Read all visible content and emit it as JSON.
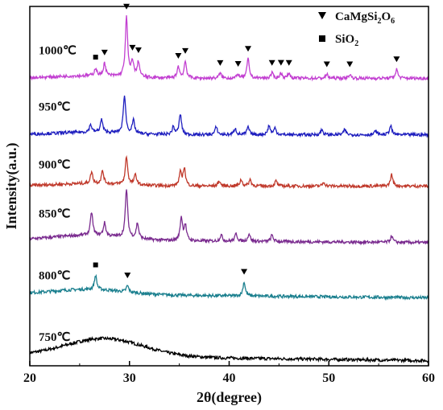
{
  "chart_data": {
    "type": "line",
    "title": "",
    "xlabel": "2θ(degree)",
    "ylabel": "Intensity(a.u.)",
    "xlim": [
      20,
      60
    ],
    "x_ticks": [
      20,
      30,
      40,
      50,
      60
    ],
    "y_ticks_shown": false,
    "legend": [
      {
        "marker": "▼",
        "label": "CaMgSi",
        "sub1": "2",
        "mid": "O",
        "sub2": "6",
        "symbol": "triangle-down"
      },
      {
        "marker": "■",
        "label": "SiO",
        "sub1": "2",
        "mid": "",
        "sub2": "",
        "symbol": "square"
      }
    ],
    "legend_position": "top-right",
    "series": [
      {
        "name": "750°C",
        "label": "750℃",
        "color": "#000000",
        "baseline": 0.0,
        "hump": {
          "center": 27.5,
          "width": 5.5,
          "height": 0.07
        },
        "drift": -0.02,
        "peaks": []
      },
      {
        "name": "800°C",
        "label": "800℃",
        "color": "#1a7f8e",
        "baseline": 0.24,
        "hump": {
          "center": 26,
          "width": 5,
          "height": 0.02
        },
        "drift": -0.015,
        "peaks": [
          {
            "x": 26.6,
            "h": 0.055
          },
          {
            "x": 29.8,
            "h": 0.025
          },
          {
            "x": 41.5,
            "h": 0.055
          }
        ]
      },
      {
        "name": "850°C",
        "label": "850℃",
        "color": "#7a2b8f",
        "baseline": 0.45,
        "hump": {
          "center": 26,
          "width": 5,
          "height": 0.02
        },
        "drift": -0.01,
        "peaks": [
          {
            "x": 26.2,
            "h": 0.09
          },
          {
            "x": 27.5,
            "h": 0.05
          },
          {
            "x": 29.7,
            "h": 0.19
          },
          {
            "x": 30.8,
            "h": 0.06
          },
          {
            "x": 35.2,
            "h": 0.09
          },
          {
            "x": 35.6,
            "h": 0.06
          },
          {
            "x": 39.2,
            "h": 0.025
          },
          {
            "x": 40.7,
            "h": 0.03
          },
          {
            "x": 42.0,
            "h": 0.03
          },
          {
            "x": 44.3,
            "h": 0.025
          },
          {
            "x": 56.3,
            "h": 0.025
          }
        ]
      },
      {
        "name": "900°C",
        "label": "900℃",
        "color": "#c0392b",
        "baseline": 0.66,
        "hump": {
          "center": 26,
          "width": 5,
          "height": 0.01
        },
        "drift": 0.0,
        "peaks": [
          {
            "x": 26.2,
            "h": 0.045
          },
          {
            "x": 27.3,
            "h": 0.05
          },
          {
            "x": 29.7,
            "h": 0.11
          },
          {
            "x": 30.6,
            "h": 0.04
          },
          {
            "x": 35.1,
            "h": 0.05
          },
          {
            "x": 35.5,
            "h": 0.07
          },
          {
            "x": 39.0,
            "h": 0.02
          },
          {
            "x": 41.2,
            "h": 0.025
          },
          {
            "x": 42.1,
            "h": 0.025
          },
          {
            "x": 44.7,
            "h": 0.02
          },
          {
            "x": 49.5,
            "h": 0.015
          },
          {
            "x": 56.3,
            "h": 0.045
          }
        ]
      },
      {
        "name": "950°C",
        "label": "950℃",
        "color": "#1f1fbf",
        "baseline": 0.86,
        "hump": {
          "center": 26,
          "width": 5,
          "height": 0.01
        },
        "drift": 0.0,
        "peaks": [
          {
            "x": 26.1,
            "h": 0.03
          },
          {
            "x": 27.2,
            "h": 0.05
          },
          {
            "x": 29.5,
            "h": 0.15
          },
          {
            "x": 30.4,
            "h": 0.05
          },
          {
            "x": 34.4,
            "h": 0.03
          },
          {
            "x": 35.1,
            "h": 0.08
          },
          {
            "x": 38.7,
            "h": 0.03
          },
          {
            "x": 40.6,
            "h": 0.025
          },
          {
            "x": 41.9,
            "h": 0.03
          },
          {
            "x": 44.0,
            "h": 0.035
          },
          {
            "x": 44.6,
            "h": 0.025
          },
          {
            "x": 49.3,
            "h": 0.02
          },
          {
            "x": 51.6,
            "h": 0.02
          },
          {
            "x": 54.7,
            "h": 0.015
          },
          {
            "x": 56.2,
            "h": 0.035
          }
        ]
      },
      {
        "name": "1000°C",
        "label": "1000℃",
        "color": "#c23fd1",
        "baseline": 1.08,
        "hump": {
          "center": 26,
          "width": 5,
          "height": 0.01
        },
        "drift": 0.0,
        "peaks": [
          {
            "x": 26.6,
            "h": 0.03
          },
          {
            "x": 27.5,
            "h": 0.05
          },
          {
            "x": 29.7,
            "h": 0.23
          },
          {
            "x": 30.3,
            "h": 0.06
          },
          {
            "x": 30.9,
            "h": 0.06
          },
          {
            "x": 34.9,
            "h": 0.045
          },
          {
            "x": 35.6,
            "h": 0.065
          },
          {
            "x": 39.1,
            "h": 0.02
          },
          {
            "x": 40.9,
            "h": 0.015
          },
          {
            "x": 41.9,
            "h": 0.075
          },
          {
            "x": 44.3,
            "h": 0.02
          },
          {
            "x": 45.2,
            "h": 0.02
          },
          {
            "x": 46.0,
            "h": 0.02
          },
          {
            "x": 49.8,
            "h": 0.015
          },
          {
            "x": 52.1,
            "h": 0.015
          },
          {
            "x": 56.8,
            "h": 0.035
          }
        ]
      }
    ],
    "annotations": [
      {
        "symbol": "square",
        "x": 26.6,
        "series": "1000°C"
      },
      {
        "symbol": "triangle-down",
        "x": 27.5,
        "series": "1000°C"
      },
      {
        "symbol": "triangle-down",
        "x": 29.7,
        "series": "1000°C"
      },
      {
        "symbol": "triangle-down",
        "x": 30.3,
        "series": "1000°C"
      },
      {
        "symbol": "triangle-down",
        "x": 30.9,
        "series": "1000°C"
      },
      {
        "symbol": "triangle-down",
        "x": 34.9,
        "series": "1000°C"
      },
      {
        "symbol": "triangle-down",
        "x": 35.6,
        "series": "1000°C"
      },
      {
        "symbol": "triangle-down",
        "x": 39.1,
        "series": "1000°C"
      },
      {
        "symbol": "triangle-down",
        "x": 40.9,
        "series": "1000°C"
      },
      {
        "symbol": "triangle-down",
        "x": 41.9,
        "series": "1000°C"
      },
      {
        "symbol": "triangle-down",
        "x": 44.3,
        "series": "1000°C"
      },
      {
        "symbol": "triangle-down",
        "x": 45.2,
        "series": "1000°C"
      },
      {
        "symbol": "triangle-down",
        "x": 46.0,
        "series": "1000°C"
      },
      {
        "symbol": "triangle-down",
        "x": 49.8,
        "series": "1000°C"
      },
      {
        "symbol": "triangle-down",
        "x": 52.1,
        "series": "1000°C"
      },
      {
        "symbol": "triangle-down",
        "x": 56.8,
        "series": "1000°C"
      },
      {
        "symbol": "square",
        "x": 26.6,
        "series": "800°C"
      },
      {
        "symbol": "triangle-down",
        "x": 29.8,
        "series": "800°C"
      },
      {
        "symbol": "triangle-down",
        "x": 41.5,
        "series": "800°C"
      }
    ]
  }
}
